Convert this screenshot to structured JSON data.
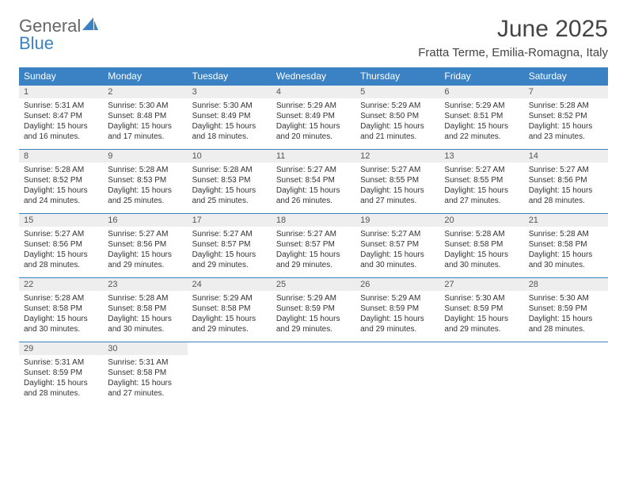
{
  "logo": {
    "text1": "General",
    "text2": "Blue",
    "accent_color": "#3b82c4",
    "text_color": "#666666"
  },
  "title": "June 2025",
  "location": "Fratta Terme, Emilia-Romagna, Italy",
  "colors": {
    "header_bg": "#3b82c4",
    "header_fg": "#ffffff",
    "daynum_bg": "#eeeeee",
    "border": "#3b82c4"
  },
  "weekdays": [
    "Sunday",
    "Monday",
    "Tuesday",
    "Wednesday",
    "Thursday",
    "Friday",
    "Saturday"
  ],
  "weeks": [
    [
      {
        "n": "1",
        "sr": "5:31 AM",
        "ss": "8:47 PM",
        "dh": "15",
        "dm": "16"
      },
      {
        "n": "2",
        "sr": "5:30 AM",
        "ss": "8:48 PM",
        "dh": "15",
        "dm": "17"
      },
      {
        "n": "3",
        "sr": "5:30 AM",
        "ss": "8:49 PM",
        "dh": "15",
        "dm": "18"
      },
      {
        "n": "4",
        "sr": "5:29 AM",
        "ss": "8:49 PM",
        "dh": "15",
        "dm": "20"
      },
      {
        "n": "5",
        "sr": "5:29 AM",
        "ss": "8:50 PM",
        "dh": "15",
        "dm": "21"
      },
      {
        "n": "6",
        "sr": "5:29 AM",
        "ss": "8:51 PM",
        "dh": "15",
        "dm": "22"
      },
      {
        "n": "7",
        "sr": "5:28 AM",
        "ss": "8:52 PM",
        "dh": "15",
        "dm": "23"
      }
    ],
    [
      {
        "n": "8",
        "sr": "5:28 AM",
        "ss": "8:52 PM",
        "dh": "15",
        "dm": "24"
      },
      {
        "n": "9",
        "sr": "5:28 AM",
        "ss": "8:53 PM",
        "dh": "15",
        "dm": "25"
      },
      {
        "n": "10",
        "sr": "5:28 AM",
        "ss": "8:53 PM",
        "dh": "15",
        "dm": "25"
      },
      {
        "n": "11",
        "sr": "5:27 AM",
        "ss": "8:54 PM",
        "dh": "15",
        "dm": "26"
      },
      {
        "n": "12",
        "sr": "5:27 AM",
        "ss": "8:55 PM",
        "dh": "15",
        "dm": "27"
      },
      {
        "n": "13",
        "sr": "5:27 AM",
        "ss": "8:55 PM",
        "dh": "15",
        "dm": "27"
      },
      {
        "n": "14",
        "sr": "5:27 AM",
        "ss": "8:56 PM",
        "dh": "15",
        "dm": "28"
      }
    ],
    [
      {
        "n": "15",
        "sr": "5:27 AM",
        "ss": "8:56 PM",
        "dh": "15",
        "dm": "28"
      },
      {
        "n": "16",
        "sr": "5:27 AM",
        "ss": "8:56 PM",
        "dh": "15",
        "dm": "29"
      },
      {
        "n": "17",
        "sr": "5:27 AM",
        "ss": "8:57 PM",
        "dh": "15",
        "dm": "29"
      },
      {
        "n": "18",
        "sr": "5:27 AM",
        "ss": "8:57 PM",
        "dh": "15",
        "dm": "29"
      },
      {
        "n": "19",
        "sr": "5:27 AM",
        "ss": "8:57 PM",
        "dh": "15",
        "dm": "30"
      },
      {
        "n": "20",
        "sr": "5:28 AM",
        "ss": "8:58 PM",
        "dh": "15",
        "dm": "30"
      },
      {
        "n": "21",
        "sr": "5:28 AM",
        "ss": "8:58 PM",
        "dh": "15",
        "dm": "30"
      }
    ],
    [
      {
        "n": "22",
        "sr": "5:28 AM",
        "ss": "8:58 PM",
        "dh": "15",
        "dm": "30"
      },
      {
        "n": "23",
        "sr": "5:28 AM",
        "ss": "8:58 PM",
        "dh": "15",
        "dm": "30"
      },
      {
        "n": "24",
        "sr": "5:29 AM",
        "ss": "8:58 PM",
        "dh": "15",
        "dm": "29"
      },
      {
        "n": "25",
        "sr": "5:29 AM",
        "ss": "8:59 PM",
        "dh": "15",
        "dm": "29"
      },
      {
        "n": "26",
        "sr": "5:29 AM",
        "ss": "8:59 PM",
        "dh": "15",
        "dm": "29"
      },
      {
        "n": "27",
        "sr": "5:30 AM",
        "ss": "8:59 PM",
        "dh": "15",
        "dm": "29"
      },
      {
        "n": "28",
        "sr": "5:30 AM",
        "ss": "8:59 PM",
        "dh": "15",
        "dm": "28"
      }
    ],
    [
      {
        "n": "29",
        "sr": "5:31 AM",
        "ss": "8:59 PM",
        "dh": "15",
        "dm": "28"
      },
      {
        "n": "30",
        "sr": "5:31 AM",
        "ss": "8:58 PM",
        "dh": "15",
        "dm": "27"
      },
      null,
      null,
      null,
      null,
      null
    ]
  ],
  "labels": {
    "sunrise": "Sunrise:",
    "sunset": "Sunset:",
    "daylight": "Daylight:",
    "hours": "hours",
    "and": "and",
    "minutes": "minutes."
  }
}
